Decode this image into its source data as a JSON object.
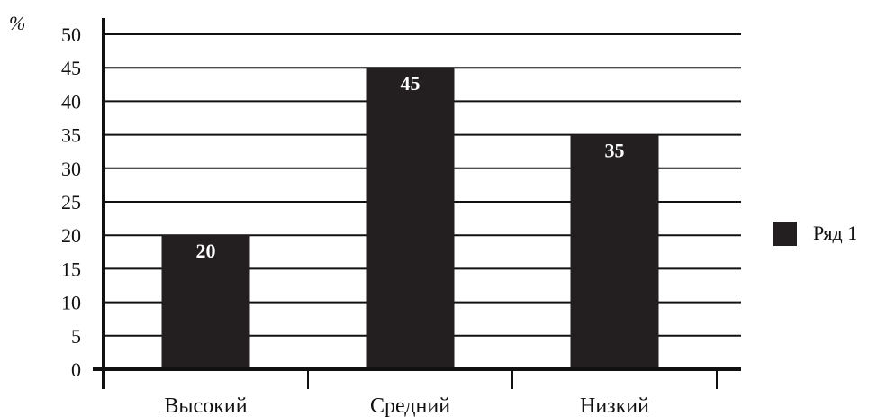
{
  "chart_data": {
    "type": "bar",
    "y_unit": "%",
    "categories": [
      "Высокий",
      "Средний",
      "Низкий"
    ],
    "series": [
      {
        "name": "Ряд 1",
        "values": [
          20,
          45,
          35
        ],
        "color": "#231f20"
      }
    ],
    "ylim": [
      0,
      50
    ],
    "yticks": [
      "0",
      "5",
      "10",
      "15",
      "20",
      "25",
      "30",
      "35",
      "40",
      "45",
      "50"
    ],
    "grid": true,
    "legend": "right",
    "colors": {
      "axis": "#111111",
      "grid": "#111111",
      "bar": "#231f20",
      "data_label": "#ffffff"
    }
  }
}
